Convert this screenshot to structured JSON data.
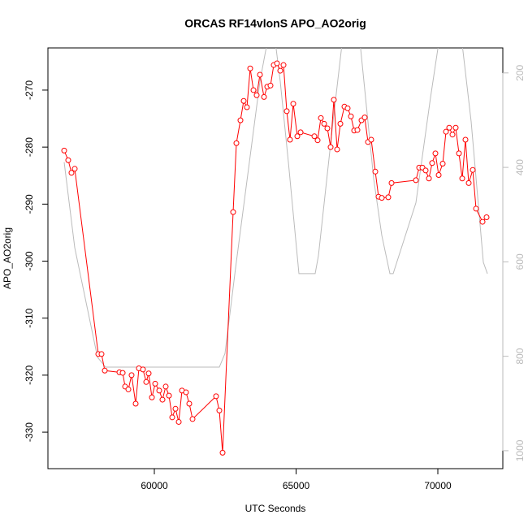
{
  "chart_data": {
    "type": "line",
    "title": "ORCAS RF14vlonS APO_AO2orig",
    "xlabel": "UTC Seconds",
    "ylabel": "APO_AO2orig",
    "xlim": [
      56246,
      72292
    ],
    "xticks": [
      60000,
      65000,
      70000
    ],
    "ylim": [
      -336.4,
      -262.6
    ],
    "yticks": [
      -330,
      -320,
      -310,
      -300,
      -290,
      -280,
      -270
    ],
    "y2lim": [
      1038,
      147
    ],
    "y2ticks": [
      200,
      400,
      600,
      800,
      1000
    ],
    "y2color": "#bbbbbb",
    "series": [
      {
        "color": "#bbbbbb",
        "axis": "y2",
        "markers": false,
        "x": [
          56819,
          57192,
          57994,
          58280,
          62292,
          62492,
          62865,
          63724,
          64154,
          64441,
          64728,
          65100,
          65673,
          65788,
          66303,
          66733,
          67163,
          67736,
          68023,
          68309,
          68424,
          69226,
          69742,
          70172,
          70745,
          71175,
          71605,
          71748
        ],
        "values": [
          389,
          570,
          802,
          823,
          823,
          794,
          613,
          218,
          80,
          218,
          389,
          625,
          625,
          587,
          303,
          80,
          80,
          424,
          544,
          625,
          625,
          475,
          252,
          80,
          80,
          303,
          601,
          625
        ]
      },
      {
        "color": "#ff0000",
        "markers": true,
        "x": [
          56819,
          56962,
          57077,
          57192,
          58022,
          58137,
          58252,
          58768,
          58883,
          58968,
          59083,
          59197,
          59341,
          59455,
          59599,
          59713,
          59799,
          59914,
          60029,
          60172,
          60286,
          60401,
          60516,
          60630,
          60745,
          60860,
          60974,
          61117,
          61232,
          61347,
          62177,
          62292,
          62407,
          62779,
          62894,
          63037,
          63152,
          63266,
          63381,
          63496,
          63610,
          63725,
          63868,
          63983,
          64097,
          64212,
          64327,
          64441,
          64556,
          64671,
          64785,
          64900,
          65043,
          65158,
          65645,
          65759,
          65874,
          65989,
          66103,
          66218,
          66332,
          66447,
          66562,
          66705,
          66819,
          66934,
          67049,
          67163,
          67307,
          67421,
          67536,
          67650,
          67794,
          67908,
          68023,
          68252,
          68367,
          69226,
          69341,
          69456,
          69570,
          69685,
          69799,
          69914,
          70029,
          70172,
          70287,
          70401,
          70516,
          70630,
          70745,
          70860,
          70974,
          71089,
          71232,
          71347,
          71576,
          71719
        ],
        "values": [
          -280.6,
          -282.3,
          -284.5,
          -283.8,
          -316.3,
          -316.3,
          -319.2,
          -319.5,
          -319.6,
          -322.0,
          -322.5,
          -320.0,
          -325.0,
          -318.8,
          -319.0,
          -321.2,
          -319.7,
          -323.9,
          -321.5,
          -322.7,
          -324.3,
          -322.0,
          -323.6,
          -327.4,
          -325.9,
          -328.2,
          -322.7,
          -323.0,
          -325.0,
          -327.7,
          -323.7,
          -326.2,
          -333.6,
          -291.4,
          -279.3,
          -275.3,
          -271.9,
          -273.0,
          -266.2,
          -270.0,
          -270.9,
          -267.3,
          -271.2,
          -269.4,
          -269.2,
          -265.6,
          -265.3,
          -266.6,
          -265.6,
          -273.7,
          -278.7,
          -272.4,
          -278.1,
          -277.4,
          -278.1,
          -278.8,
          -274.9,
          -275.9,
          -276.7,
          -280.0,
          -271.7,
          -280.4,
          -275.9,
          -272.9,
          -273.2,
          -274.6,
          -277.1,
          -277.0,
          -275.3,
          -274.8,
          -279.1,
          -278.7,
          -284.3,
          -288.7,
          -288.9,
          -288.8,
          -286.3,
          -285.8,
          -283.6,
          -283.6,
          -284.1,
          -285.5,
          -282.8,
          -281.1,
          -284.9,
          -282.9,
          -277.3,
          -276.6,
          -277.8,
          -276.6,
          -281.1,
          -285.5,
          -278.7,
          -286.3,
          -284.0,
          -290.8,
          -293.1,
          -292.3
        ]
      }
    ]
  }
}
